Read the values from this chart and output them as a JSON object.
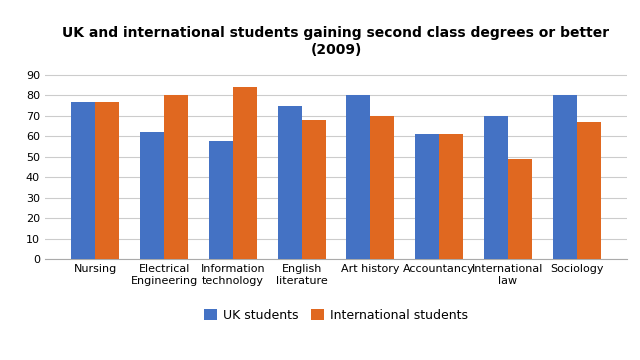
{
  "title": "UK and international students gaining second class degrees or better\n(2009)",
  "categories": [
    "Nursing",
    "Electrical\nEngineering",
    "Information\ntechnology",
    "English\nliterature",
    "Art history",
    "Accountancy",
    "International\nlaw",
    "Sociology"
  ],
  "uk_values": [
    77,
    62,
    58,
    75,
    80,
    61,
    70,
    80
  ],
  "intl_values": [
    77,
    80,
    84,
    68,
    70,
    61,
    49,
    67
  ],
  "uk_color": "#4472c4",
  "intl_color": "#e06820",
  "uk_label": "UK students",
  "intl_label": "International students",
  "ylim": [
    0,
    95
  ],
  "yticks": [
    0,
    10,
    20,
    30,
    40,
    50,
    60,
    70,
    80,
    90
  ],
  "background_color": "#ffffff",
  "title_fontsize": 10,
  "legend_fontsize": 9,
  "tick_fontsize": 8,
  "bar_width": 0.35
}
